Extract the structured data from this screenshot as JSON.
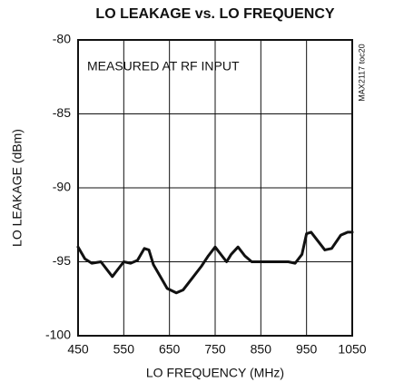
{
  "chart_data": {
    "type": "line",
    "title": "LO LEAKAGE vs. LO FREQUENCY",
    "x_label": "LO FREQUENCY (MHz)",
    "y_label": "LO LEAKAGE (dBm)",
    "annotations": [
      "MEASURED AT RF INPUT",
      "MAX2117 toc20"
    ],
    "xlim": [
      450,
      1050
    ],
    "xticks": [
      450,
      550,
      650,
      750,
      850,
      950,
      1050
    ],
    "ylim": [
      -100,
      -80
    ],
    "yticks": [
      -80,
      -85,
      -90,
      -95,
      -100
    ],
    "grid": true,
    "series": [
      {
        "color": "#111111",
        "x": [
          450,
          465,
          480,
          500,
          515,
          525,
          540,
          550,
          565,
          580,
          595,
          605,
          615,
          630,
          645,
          665,
          680,
          700,
          720,
          735,
          750,
          765,
          775,
          785,
          800,
          815,
          830,
          850,
          880,
          910,
          925,
          940,
          950,
          960,
          975,
          990,
          1005,
          1025,
          1040,
          1050
        ],
        "values": [
          -94.0,
          -94.8,
          -95.1,
          -95.0,
          -95.6,
          -96.0,
          -95.4,
          -95.0,
          -95.1,
          -94.9,
          -94.1,
          -94.2,
          -95.2,
          -96.0,
          -96.8,
          -97.1,
          -96.9,
          -96.1,
          -95.3,
          -94.6,
          -94.0,
          -94.6,
          -95.0,
          -94.5,
          -94.0,
          -94.6,
          -95.0,
          -95.0,
          -95.0,
          -95.0,
          -95.1,
          -94.5,
          -93.1,
          -93.0,
          -93.6,
          -94.2,
          -94.1,
          -93.2,
          -93.0,
          -93.0
        ]
      }
    ]
  }
}
